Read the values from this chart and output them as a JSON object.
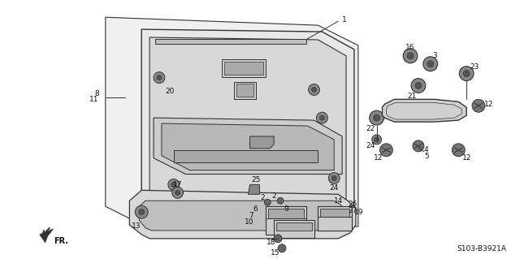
{
  "background_color": "#ffffff",
  "diagram_code": "S103-B3921A",
  "fig_width": 6.4,
  "fig_height": 3.19,
  "dpi": 100,
  "line_color": "#333333",
  "text_color": "#111111",
  "font_size": 6.5
}
